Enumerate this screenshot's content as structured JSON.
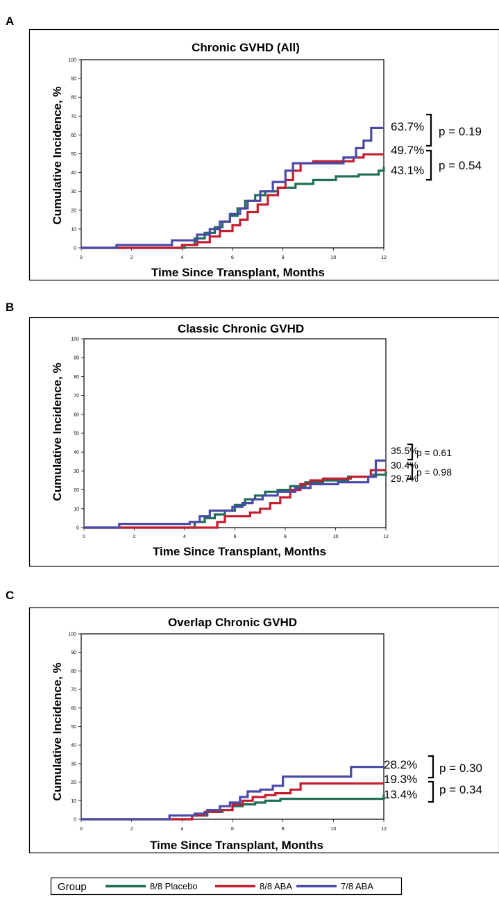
{
  "colors": {
    "placebo": "#1f6e58",
    "aba88": "#c41e2e",
    "aba78": "#4a4aa8"
  },
  "legend": {
    "title": "Group",
    "entries": [
      {
        "name": "8/8 Placebo",
        "color": "#1f6e58"
      },
      {
        "name": "8/8 ABA",
        "color": "#c41e2e"
      },
      {
        "name": "7/8 ABA",
        "color": "#4a4aa8"
      }
    ]
  },
  "chart_data": [
    {
      "type": "line",
      "panel_label": "A",
      "title": "Chronic GVHD (All)",
      "xlabel": "Time Since Transplant, Months",
      "ylabel": "Cumulative Incidence, %",
      "xlim": [
        0,
        12
      ],
      "ylim": [
        0,
        100
      ],
      "xticks": [
        "0",
        "2",
        "4",
        "6",
        "8",
        "10",
        "12"
      ],
      "yticks": [
        "0",
        "10",
        "20",
        "30",
        "40",
        "50",
        "60",
        "70",
        "80",
        "90",
        "100"
      ],
      "series": [
        {
          "name": "8/8 Placebo",
          "x": [
            0,
            3.6,
            4.1,
            4.5,
            4.9,
            5.3,
            5.6,
            5.9,
            6.2,
            6.5,
            6.9,
            7.3,
            7.8,
            8.5,
            9.2,
            10.1,
            11.0,
            11.8,
            12.0
          ],
          "y": [
            0,
            0,
            1.5,
            5,
            8,
            11,
            14,
            17,
            21,
            25,
            28,
            30,
            32,
            34,
            36,
            38,
            39,
            41,
            43.1
          ]
        },
        {
          "name": "8/8 ABA",
          "x": [
            0,
            3.4,
            4.0,
            4.6,
            5.1,
            5.5,
            6.0,
            6.3,
            6.6,
            7.0,
            7.4,
            7.8,
            8.1,
            8.4,
            8.7,
            9.2,
            10.2,
            10.8,
            11.2,
            12.0
          ],
          "y": [
            0,
            0,
            1.5,
            3,
            6,
            9,
            12,
            15,
            19,
            23,
            28,
            32,
            36,
            41,
            45,
            46,
            46,
            48,
            49.7,
            49.7
          ]
        },
        {
          "name": "7/8 ABA",
          "x": [
            0,
            1.4,
            3.6,
            4.6,
            5.1,
            5.5,
            5.9,
            6.3,
            6.6,
            7.1,
            7.6,
            8.1,
            8.4,
            9.3,
            10.4,
            10.9,
            11.2,
            11.5,
            12.0
          ],
          "y": [
            0,
            1.5,
            4,
            7,
            10,
            14,
            18,
            21,
            25,
            30,
            35,
            41,
            45,
            45,
            48,
            53,
            57,
            63.7,
            63.7
          ]
        }
      ],
      "annotations": {
        "endpoints": [
          "63.7%",
          "49.7%",
          "43.1%"
        ],
        "pvalues": [
          "p = 0.19",
          "p = 0.54"
        ]
      }
    },
    {
      "type": "line",
      "panel_label": "B",
      "title": "Classic Chronic GVHD",
      "xlabel": "Time Since Transplant, Months",
      "ylabel": "Cumulative Incidence, %",
      "xlim": [
        0,
        12
      ],
      "ylim": [
        0,
        100
      ],
      "xticks": [
        "0",
        "2",
        "4",
        "6",
        "8",
        "10",
        "12"
      ],
      "yticks": [
        "0",
        "10",
        "20",
        "30",
        "40",
        "50",
        "60",
        "70",
        "80",
        "90",
        "100"
      ],
      "series": [
        {
          "name": "8/8 Placebo",
          "x": [
            0,
            3.9,
            4.4,
            4.8,
            5.2,
            5.6,
            6.0,
            6.4,
            6.8,
            7.2,
            7.7,
            8.2,
            8.8,
            9.5,
            10.5,
            11.5,
            12.0
          ],
          "y": [
            0,
            0,
            3,
            5,
            7,
            9,
            12,
            15,
            17,
            19,
            20,
            22,
            24,
            25,
            27,
            28,
            29.7
          ]
        },
        {
          "name": "8/8 ABA",
          "x": [
            0,
            4.8,
            5.3,
            5.6,
            6.2,
            6.6,
            7.0,
            7.4,
            7.8,
            8.2,
            8.6,
            9.0,
            9.5,
            10.6,
            11.4,
            12.0
          ],
          "y": [
            0,
            0,
            3,
            6,
            6,
            8,
            10,
            13,
            16,
            20,
            23,
            25,
            26,
            27,
            30.4,
            30.4
          ]
        },
        {
          "name": "7/8 ABA",
          "x": [
            0,
            1.4,
            4.2,
            4.6,
            5.0,
            5.5,
            5.9,
            6.3,
            6.7,
            7.1,
            7.7,
            8.4,
            9.0,
            10.1,
            11.3,
            11.6,
            12.0
          ],
          "y": [
            0,
            2,
            3,
            6,
            9,
            9,
            11,
            13,
            15,
            17,
            19,
            21,
            23,
            24,
            27,
            35.5,
            35.5
          ]
        }
      ],
      "annotations": {
        "endpoints": [
          "35.5%",
          "30.4%",
          "29.7%"
        ],
        "pvalues": [
          "p = 0.61",
          "p = 0.98"
        ]
      }
    },
    {
      "type": "line",
      "panel_label": "C",
      "title": "Overlap Chronic GVHD",
      "xlabel": "Time Since Transplant, Months",
      "ylabel": "Cumulative Incidence, %",
      "xlim": [
        0,
        12
      ],
      "ylim": [
        0,
        100
      ],
      "xticks": [
        "0",
        "2",
        "4",
        "6",
        "8",
        "10",
        "12"
      ],
      "yticks": [
        "0",
        "10",
        "20",
        "30",
        "40",
        "50",
        "60",
        "70",
        "80",
        "90",
        "100"
      ],
      "series": [
        {
          "name": "8/8 Placebo",
          "x": [
            0,
            3.9,
            4.4,
            5.0,
            5.6,
            6.0,
            6.4,
            6.9,
            7.3,
            7.9,
            8.6,
            11.8,
            12.0
          ],
          "y": [
            0,
            0,
            2,
            4,
            5,
            7,
            8,
            9,
            10,
            11,
            11,
            11,
            13.4
          ]
        },
        {
          "name": "8/8 ABA",
          "x": [
            0,
            4.0,
            4.4,
            4.9,
            5.5,
            6.0,
            6.4,
            6.8,
            7.3,
            7.7,
            8.3,
            8.7,
            12.0
          ],
          "y": [
            0,
            0,
            2,
            4,
            5,
            8,
            10,
            12,
            13,
            14,
            16,
            19.3,
            19.3
          ]
        },
        {
          "name": "7/8 ABA",
          "x": [
            0,
            3.5,
            4.0,
            4.5,
            5.0,
            5.5,
            5.9,
            6.3,
            6.6,
            7.1,
            7.6,
            8.0,
            10.4,
            10.7,
            12.0
          ],
          "y": [
            0,
            2,
            2,
            3,
            5,
            7,
            9,
            12,
            15,
            16,
            18,
            23,
            23,
            28.2,
            28.2
          ]
        }
      ],
      "annotations": {
        "endpoints": [
          "28.2%",
          "19.3%",
          "13.4%"
        ],
        "pvalues": [
          "p = 0.30",
          "p = 0.34"
        ]
      }
    }
  ]
}
